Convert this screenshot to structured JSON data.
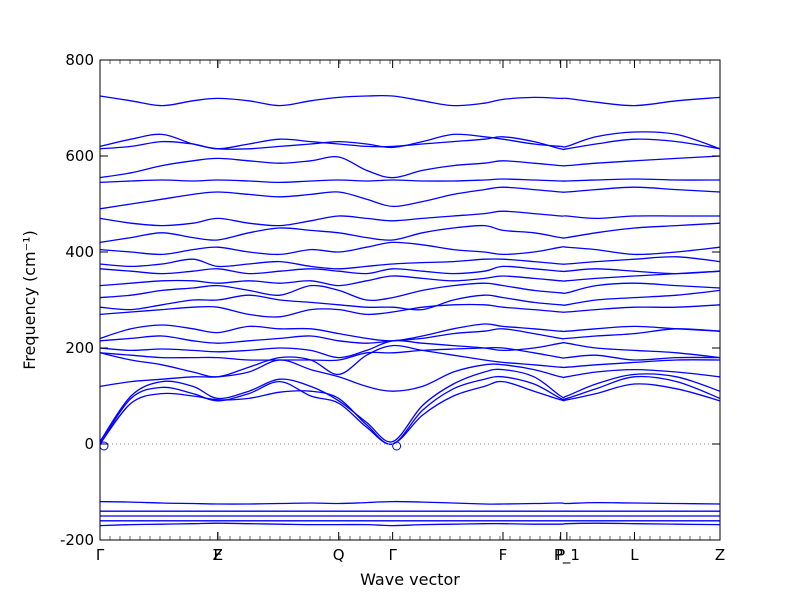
{
  "chart_data": {
    "type": "line",
    "title": "",
    "xlabel": "Wave vector",
    "ylabel": "Frequency (cm⁻¹)",
    "ylim": [
      -200,
      800
    ],
    "yticks": [
      -200,
      0,
      200,
      400,
      600,
      800
    ],
    "xlim": [
      0,
      1
    ],
    "grid": false,
    "legend": "none",
    "line_color": "#0000ff",
    "zero_line": {
      "y": 0,
      "style": "dotted",
      "color": "#888888"
    },
    "high_symmetry_points": [
      {
        "label": "Γ",
        "x": 0.0
      },
      {
        "label": "Z",
        "x": 0.19
      },
      {
        "label": "F",
        "x": 0.19
      },
      {
        "label": "Q",
        "x": 0.385
      },
      {
        "label": "Γ",
        "x": 0.472
      },
      {
        "label": "F",
        "x": 0.65
      },
      {
        "label": "P",
        "x": 0.743
      },
      {
        "label": "P_1",
        "x": 0.753
      },
      {
        "label": "L",
        "x": 0.862
      },
      {
        "label": "Z",
        "x": 1.0
      }
    ],
    "x": [
      0,
      0.05,
      0.1,
      0.15,
      0.19,
      0.24,
      0.29,
      0.34,
      0.385,
      0.43,
      0.472,
      0.52,
      0.57,
      0.62,
      0.65,
      0.7,
      0.743,
      0.753,
      0.8,
      0.862,
      0.93,
      1.0
    ],
    "series": [
      {
        "values": [
          -170,
          -168,
          -167,
          -166,
          -165,
          -166,
          -167,
          -168,
          -168,
          -168,
          -170,
          -168,
          -167,
          -166,
          -166,
          -167,
          -167,
          -166,
          -165,
          -166,
          -167,
          -168
        ]
      },
      {
        "values": [
          -160,
          -160,
          -160,
          -160,
          -160,
          -160,
          -160,
          -160,
          -160,
          -160,
          -160,
          -160,
          -160,
          -160,
          -160,
          -160,
          -160,
          -160,
          -160,
          -160,
          -160,
          -160
        ]
      },
      {
        "values": [
          -150,
          -150,
          -150,
          -150,
          -150,
          -150,
          -150,
          -150,
          -150,
          -150,
          -150,
          -150,
          -150,
          -150,
          -150,
          -150,
          -150,
          -150,
          -150,
          -150,
          -150,
          -150
        ]
      },
      {
        "values": [
          -140,
          -140,
          -140,
          -140,
          -140,
          -140,
          -140,
          -140,
          -140,
          -140,
          -140,
          -140,
          -140,
          -140,
          -140,
          -140,
          -140,
          -140,
          -140,
          -140,
          -140,
          -140
        ]
      },
      {
        "values": [
          -120,
          -121,
          -123,
          -124,
          -125,
          -125,
          -124,
          -123,
          -124,
          -122,
          -120,
          -121,
          -123,
          -125,
          -125,
          -124,
          -123,
          -124,
          -122,
          -123,
          -124,
          -125
        ]
      },
      {
        "values": [
          0,
          95,
          118,
          105,
          90,
          105,
          130,
          100,
          85,
          35,
          0,
          60,
          100,
          120,
          130,
          110,
          92,
          92,
          105,
          125,
          115,
          90
        ]
      },
      {
        "values": [
          0,
          85,
          105,
          100,
          92,
          95,
          108,
          110,
          95,
          40,
          0,
          70,
          115,
          135,
          140,
          125,
          95,
          95,
          115,
          140,
          130,
          95
        ]
      },
      {
        "values": [
          5,
          100,
          130,
          120,
          95,
          110,
          135,
          120,
          90,
          45,
          5,
          80,
          125,
          150,
          155,
          140,
          100,
          100,
          125,
          145,
          140,
          110
        ]
      },
      {
        "values": [
          120,
          130,
          135,
          140,
          140,
          150,
          175,
          155,
          140,
          120,
          110,
          120,
          150,
          165,
          165,
          155,
          140,
          140,
          150,
          155,
          150,
          140
        ]
      },
      {
        "values": [
          190,
          175,
          165,
          150,
          140,
          160,
          180,
          175,
          145,
          185,
          205,
          195,
          185,
          175,
          170,
          165,
          160,
          160,
          165,
          170,
          175,
          175
        ]
      },
      {
        "values": [
          190,
          185,
          180,
          180,
          180,
          175,
          175,
          175,
          175,
          190,
          190,
          195,
          198,
          200,
          200,
          190,
          180,
          180,
          185,
          175,
          180,
          180
        ]
      },
      {
        "values": [
          200,
          195,
          198,
          195,
          192,
          195,
          200,
          195,
          180,
          195,
          215,
          210,
          205,
          200,
          195,
          200,
          210,
          210,
          200,
          195,
          190,
          180
        ]
      },
      {
        "values": [
          215,
          220,
          225,
          215,
          210,
          215,
          220,
          225,
          215,
          210,
          215,
          220,
          230,
          235,
          240,
          230,
          220,
          220,
          225,
          230,
          240,
          235
        ]
      },
      {
        "values": [
          220,
          240,
          248,
          240,
          232,
          245,
          240,
          240,
          230,
          220,
          215,
          225,
          240,
          250,
          245,
          240,
          235,
          235,
          240,
          245,
          240,
          235
        ]
      },
      {
        "values": [
          270,
          275,
          280,
          285,
          285,
          270,
          265,
          280,
          280,
          270,
          275,
          285,
          290,
          290,
          285,
          280,
          275,
          275,
          280,
          285,
          285,
          290
        ]
      },
      {
        "values": [
          285,
          280,
          290,
          300,
          300,
          310,
          300,
          295,
          290,
          285,
          285,
          280,
          300,
          310,
          305,
          295,
          290,
          290,
          300,
          305,
          310,
          320
        ]
      },
      {
        "values": [
          305,
          310,
          320,
          325,
          330,
          320,
          310,
          330,
          320,
          300,
          305,
          320,
          330,
          335,
          330,
          320,
          315,
          315,
          330,
          335,
          330,
          325
        ]
      },
      {
        "values": [
          330,
          335,
          340,
          340,
          335,
          340,
          335,
          340,
          330,
          340,
          350,
          345,
          340,
          345,
          350,
          345,
          340,
          340,
          345,
          350,
          355,
          360
        ]
      },
      {
        "values": [
          365,
          360,
          355,
          360,
          365,
          355,
          360,
          365,
          360,
          355,
          365,
          360,
          355,
          360,
          370,
          365,
          360,
          360,
          365,
          360,
          355,
          360
        ]
      },
      {
        "values": [
          375,
          370,
          375,
          385,
          370,
          375,
          380,
          370,
          365,
          370,
          375,
          378,
          380,
          385,
          385,
          380,
          375,
          375,
          380,
          385,
          390,
          380
        ]
      },
      {
        "values": [
          405,
          400,
          395,
          405,
          410,
          400,
          395,
          405,
          400,
          410,
          420,
          415,
          405,
          400,
          395,
          400,
          410,
          410,
          405,
          395,
          400,
          410
        ]
      },
      {
        "values": [
          420,
          430,
          440,
          430,
          425,
          440,
          450,
          445,
          440,
          430,
          425,
          440,
          450,
          455,
          445,
          440,
          430,
          430,
          440,
          450,
          455,
          460
        ]
      },
      {
        "values": [
          470,
          460,
          455,
          460,
          470,
          460,
          455,
          465,
          475,
          470,
          465,
          470,
          475,
          480,
          485,
          480,
          475,
          475,
          470,
          475,
          475,
          475
        ]
      },
      {
        "values": [
          490,
          500,
          510,
          520,
          525,
          520,
          515,
          520,
          525,
          510,
          495,
          505,
          520,
          530,
          535,
          530,
          525,
          525,
          530,
          535,
          530,
          525
        ]
      },
      {
        "values": [
          545,
          548,
          550,
          548,
          550,
          548,
          545,
          548,
          550,
          548,
          550,
          548,
          548,
          550,
          552,
          550,
          548,
          548,
          550,
          552,
          550,
          550
        ]
      },
      {
        "values": [
          555,
          565,
          580,
          590,
          595,
          590,
          585,
          590,
          598,
          570,
          555,
          570,
          580,
          585,
          590,
          585,
          580,
          580,
          585,
          590,
          595,
          600
        ]
      },
      {
        "values": [
          615,
          620,
          630,
          625,
          615,
          625,
          635,
          630,
          625,
          620,
          620,
          625,
          630,
          635,
          640,
          630,
          615,
          615,
          625,
          635,
          630,
          615
        ]
      },
      {
        "values": [
          620,
          635,
          645,
          625,
          615,
          615,
          620,
          625,
          630,
          625,
          618,
          630,
          645,
          640,
          635,
          625,
          620,
          620,
          640,
          650,
          645,
          615
        ]
      },
      {
        "values": [
          725,
          715,
          705,
          715,
          720,
          715,
          705,
          715,
          722,
          725,
          725,
          715,
          705,
          710,
          718,
          722,
          720,
          720,
          712,
          705,
          715,
          722
        ]
      }
    ]
  }
}
